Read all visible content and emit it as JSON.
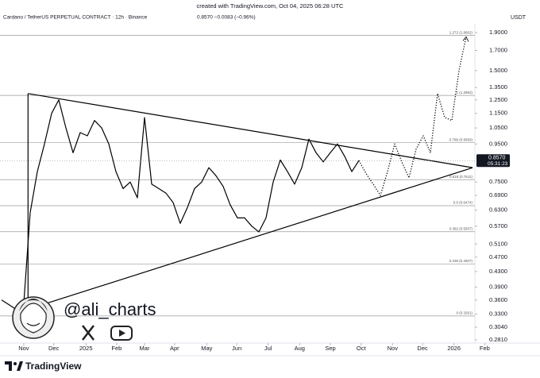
{
  "header": "created with TradingView.com, Oct 04, 2025 06:28 UTC",
  "chart_data": {
    "type": "line",
    "title": "Cardano / TetherUS PERPETUAL CONTRACT · 12h · Binance",
    "quote": "0.8570 −0.0083 (−0.96%)",
    "currency": "USDT",
    "log_scale": true,
    "xlim": [
      0,
      66
    ],
    "xticks": [
      {
        "value": 3.1,
        "label": "Nov"
      },
      {
        "value": 7.3,
        "label": "Dec"
      },
      {
        "value": 11.8,
        "label": "2025"
      },
      {
        "value": 16.1,
        "label": "Feb"
      },
      {
        "value": 20,
        "label": "Mar"
      },
      {
        "value": 24.2,
        "label": "Apr"
      },
      {
        "value": 28.7,
        "label": "May"
      },
      {
        "value": 32.9,
        "label": "Jun"
      },
      {
        "value": 37.3,
        "label": "Jul"
      },
      {
        "value": 41.7,
        "label": "Aug"
      },
      {
        "value": 46,
        "label": "Sep"
      },
      {
        "value": 50.3,
        "label": "Oct"
      },
      {
        "value": 54.7,
        "label": "Nov"
      },
      {
        "value": 58.9,
        "label": "Dec"
      },
      {
        "value": 63.3,
        "label": "2026"
      },
      {
        "value": 67.6,
        "label": "Feb"
      }
    ],
    "ylim": [
      0.2755,
      2.006
    ],
    "yticks": [
      {
        "value": 1.9,
        "label": "1.9000"
      },
      {
        "value": 1.7,
        "label": "1.7000"
      },
      {
        "value": 1.5,
        "label": "1.5000"
      },
      {
        "value": 1.35,
        "label": "1.3500"
      },
      {
        "value": 1.25,
        "label": "1.2500"
      },
      {
        "value": 1.15,
        "label": "1.1500"
      },
      {
        "value": 1.05,
        "label": "1.0500"
      },
      {
        "value": 0.95,
        "label": "0.9500"
      },
      {
        "value": 0.75,
        "label": "0.7500"
      },
      {
        "value": 0.69,
        "label": "0.6900"
      },
      {
        "value": 0.63,
        "label": "0.6300"
      },
      {
        "value": 0.57,
        "label": "0.5700"
      },
      {
        "value": 0.51,
        "label": "0.5100"
      },
      {
        "value": 0.47,
        "label": "0.4700"
      },
      {
        "value": 0.43,
        "label": "0.4300"
      },
      {
        "value": 0.39,
        "label": "0.3900"
      },
      {
        "value": 0.36,
        "label": "0.3600"
      },
      {
        "value": 0.33,
        "label": "0.3300"
      },
      {
        "value": 0.304,
        "label": "0.3040"
      },
      {
        "value": 0.281,
        "label": "0.2810"
      }
    ],
    "series": [
      {
        "color": "#000000",
        "style": "solid",
        "values": [
          0.36,
          0.35,
          0.34,
          0.33,
          0.62,
          0.8,
          0.95,
          1.15,
          1.25,
          1.05,
          0.9,
          1.02,
          1.0,
          1.1,
          1.05,
          0.95,
          0.8,
          0.72,
          0.75,
          0.68,
          1.12,
          0.74,
          0.72,
          0.7,
          0.66,
          0.58,
          0.64,
          0.72,
          0.75,
          0.82,
          0.78,
          0.73,
          0.65,
          0.6,
          0.6,
          0.57,
          0.55,
          0.6,
          0.75,
          0.86,
          0.8,
          0.74,
          0.82,
          0.98,
          0.9,
          0.85,
          0.9,
          0.95,
          0.88,
          0.8,
          0.857,
          null,
          null,
          null,
          null,
          null,
          null,
          null,
          null,
          null,
          null,
          null,
          null,
          null,
          null,
          null
        ]
      },
      {
        "color": "#000000",
        "style": "dotted",
        "values": [
          null,
          null,
          null,
          null,
          null,
          null,
          null,
          null,
          null,
          null,
          null,
          null,
          null,
          null,
          null,
          null,
          null,
          null,
          null,
          null,
          null,
          null,
          null,
          null,
          null,
          null,
          null,
          null,
          null,
          null,
          null,
          null,
          null,
          null,
          null,
          null,
          null,
          null,
          null,
          null,
          null,
          null,
          null,
          null,
          null,
          null,
          null,
          null,
          null,
          null,
          0.857,
          0.79,
          0.74,
          0.69,
          0.8,
          0.95,
          0.85,
          0.77,
          0.92,
          1.0,
          0.9,
          1.3,
          1.12,
          1.1,
          1.5,
          1.85
        ]
      }
    ],
    "triangle": {
      "x": [
        3.7,
        65.9
      ],
      "upper": [
        1.3,
        0.82
      ],
      "lower": [
        0.34,
        0.82
      ]
    },
    "fib_levels": [
      {
        "value": 1.8662,
        "label": "1.272 (1.8662)"
      },
      {
        "value": 1.2852,
        "label": "1 (1.2852)"
      },
      {
        "value": 0.9583,
        "label": "0.786 (0.9583)"
      },
      {
        "value": 0.7611,
        "label": "0.618 (0.7611)"
      },
      {
        "value": 0.6474,
        "label": "0.5 (0.6474)"
      },
      {
        "value": 0.5507,
        "label": "0.382 (0.5507)"
      },
      {
        "value": 0.4507,
        "label": "0.236 (0.4507)"
      },
      {
        "value": 0.3261,
        "label": "0 (0.3261)"
      }
    ],
    "last_price": {
      "value": 0.857,
      "label": "0.8570"
    },
    "countdown": "05:31:23"
  },
  "watermark": "@ali_charts",
  "footer": "TradingView"
}
